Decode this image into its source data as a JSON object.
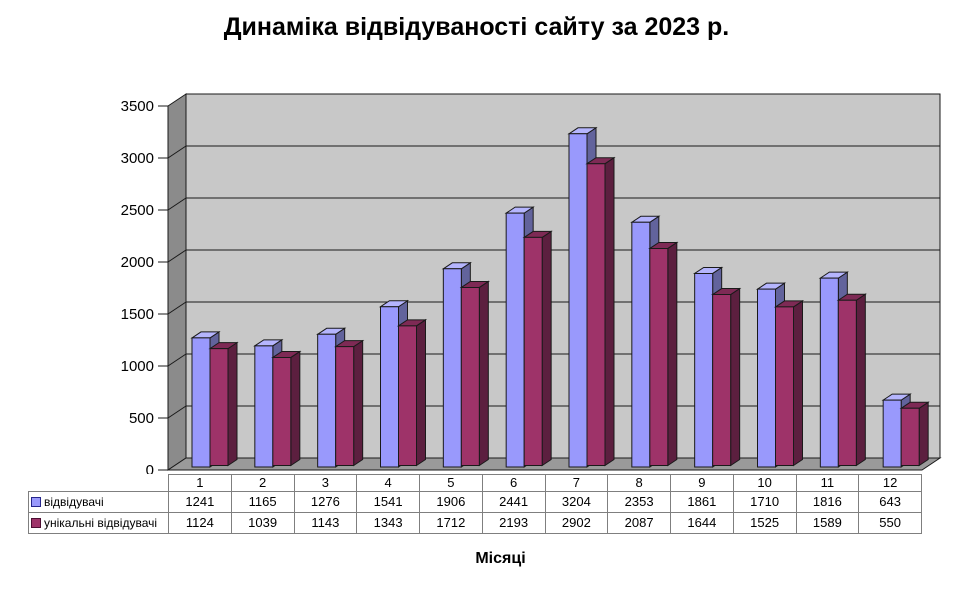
{
  "title": "Динаміка відвідуваності сайту за 2023 р.",
  "x_axis_title": "Місяці",
  "chart_data": {
    "type": "bar",
    "style": "3d-clustered-column",
    "title": "Динаміка відвідуваності сайту за 2023 р.",
    "xlabel": "Місяці",
    "ylabel": "",
    "categories": [
      "1",
      "2",
      "3",
      "4",
      "5",
      "6",
      "7",
      "8",
      "9",
      "10",
      "11",
      "12"
    ],
    "series": [
      {
        "name": "відвідувачі",
        "values": [
          1241,
          1165,
          1276,
          1541,
          1906,
          2441,
          3204,
          2353,
          1861,
          1710,
          1816,
          643
        ],
        "color_front": "#9999FC",
        "color_top": "#B5B5FD",
        "color_side": "#62639C",
        "key_border": "#26268C"
      },
      {
        "name": "унікальні відвідувачі",
        "values": [
          1124,
          1039,
          1143,
          1343,
          1712,
          2193,
          2902,
          2087,
          1644,
          1525,
          1589,
          550
        ],
        "color_front": "#9E3369",
        "color_top": "#7E2A55",
        "color_side": "#5C1F3F",
        "key_border": "#4D0F33"
      }
    ],
    "y_axis": {
      "min": 0,
      "max": 3500,
      "step": 500,
      "tick_labels": [
        "0",
        "500",
        "1000",
        "1500",
        "2000",
        "2500",
        "3000",
        "3500"
      ]
    },
    "ylim": [
      0,
      3500
    ],
    "gridlines": true,
    "legend_position": "data-table-left",
    "colors": {
      "back_wall": "#C8C8C8",
      "side_wall": "#8B8B8B",
      "floor": "#9A9A9A",
      "gridline": "#1A1A1A",
      "table_border": "#7F7F7F",
      "text": "#000000",
      "background": "#FFFFFF"
    }
  }
}
